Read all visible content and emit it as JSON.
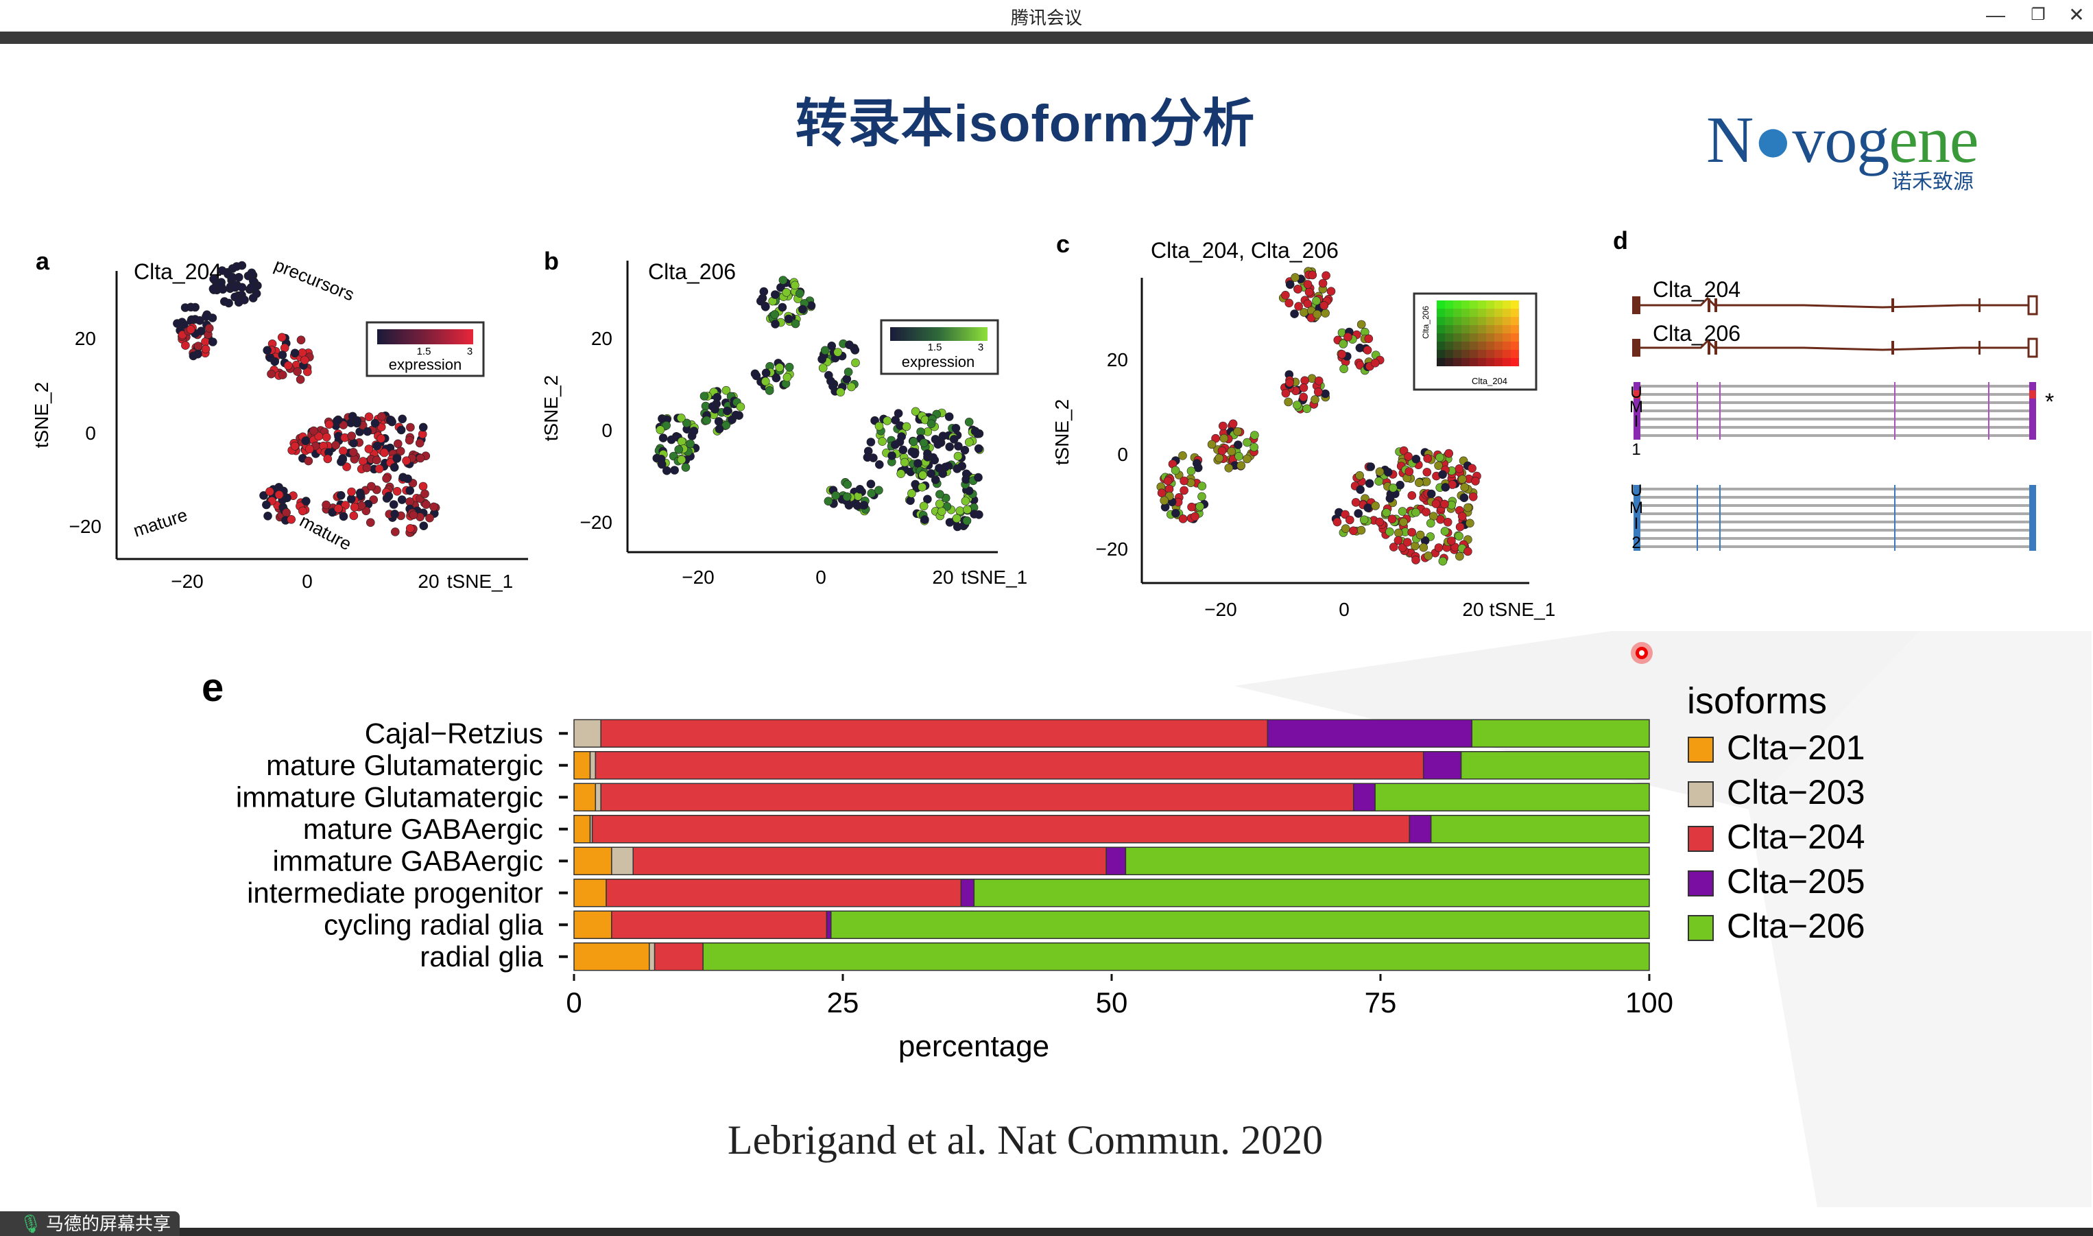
{
  "window": {
    "title": "腾讯会议",
    "minimize_icon": "minimize-icon",
    "restore_icon": "restore-icon",
    "close_icon": "close-icon"
  },
  "slide": {
    "title": "转录本isoform分析",
    "logo": {
      "brand": "Novogene",
      "subtitle": "诺禾致源"
    },
    "citation": "Lebrigand et al. Nat Commun. 2020"
  },
  "panels": {
    "a": {
      "letter": "a",
      "title": "Clta_204",
      "ylabel": "tSNE_2",
      "xlabel": "tSNE_1",
      "xticks": [
        "−20",
        "0",
        "20"
      ],
      "yticks": [
        "20",
        "0",
        "−20"
      ],
      "legend_label": "expression",
      "legend_ticks": [
        "1.5",
        "3"
      ],
      "annotations": [
        "precursors",
        "mature",
        "mature"
      ],
      "low_color": "#1a1a3a",
      "high_color": "#d7262d"
    },
    "b": {
      "letter": "b",
      "title": "Clta_206",
      "ylabel": "tSNE_2",
      "xlabel": "tSNE_1",
      "xticks": [
        "−20",
        "0",
        "20"
      ],
      "yticks": [
        "20",
        "0",
        "−20"
      ],
      "legend_label": "expression",
      "legend_ticks": [
        "1.5",
        "3"
      ],
      "low_color": "#1a1a3a",
      "high_color": "#7cd12d"
    },
    "c": {
      "letter": "c",
      "title": "Clta_204, Clta_206",
      "ylabel": "tSNE_2",
      "xlabel": "tSNE_1",
      "xticks": [
        "−20",
        "0",
        "20"
      ],
      "yticks": [
        "20",
        "0",
        "−20"
      ],
      "legend_x": "Clta_204",
      "legend_y": "Clta_206"
    },
    "d": {
      "letter": "d",
      "tracks": [
        "Clta_204",
        "Clta_206"
      ],
      "umi1": [
        "U",
        "M",
        "I",
        "1"
      ],
      "umi2": [
        "U",
        "M",
        "I",
        "2"
      ],
      "star": "*"
    }
  },
  "chart_data": {
    "type": "bar",
    "stacked": true,
    "orientation": "horizontal",
    "panel_letter": "e",
    "categories": [
      "Cajal−Retzius",
      "mature Glutamatergic",
      "immature Glutamatergic",
      "mature GABAergic",
      "immature GABAergic",
      "intermediate progenitor",
      "cycling radial glia",
      "radial glia"
    ],
    "series": [
      {
        "name": "Clta−201",
        "color": "#f39c12",
        "values": [
          0,
          1.5,
          2,
          1.5,
          3.5,
          3,
          3.5,
          7
        ]
      },
      {
        "name": "Clta−203",
        "color": "#cdbfa6",
        "values": [
          2.5,
          0.5,
          0.5,
          0.2,
          2,
          0,
          0,
          0.5
        ]
      },
      {
        "name": "Clta−204",
        "color": "#e0383f",
        "values": [
          62,
          77,
          70,
          76,
          44,
          33,
          20,
          4.5
        ]
      },
      {
        "name": "Clta−205",
        "color": "#7a0ea3",
        "values": [
          19,
          3.5,
          2,
          2,
          1.8,
          1.2,
          0.4,
          0
        ]
      },
      {
        "name": "Clta−206",
        "color": "#74c621",
        "values": [
          16.5,
          17.5,
          25.5,
          20.3,
          48.7,
          62.8,
          76.1,
          88
        ]
      }
    ],
    "xlabel": "percentage",
    "xticks": [
      0,
      25,
      50,
      75,
      100
    ],
    "xlim": [
      0,
      100
    ],
    "legend_title": "isoforms",
    "legend_position": "right"
  }
}
